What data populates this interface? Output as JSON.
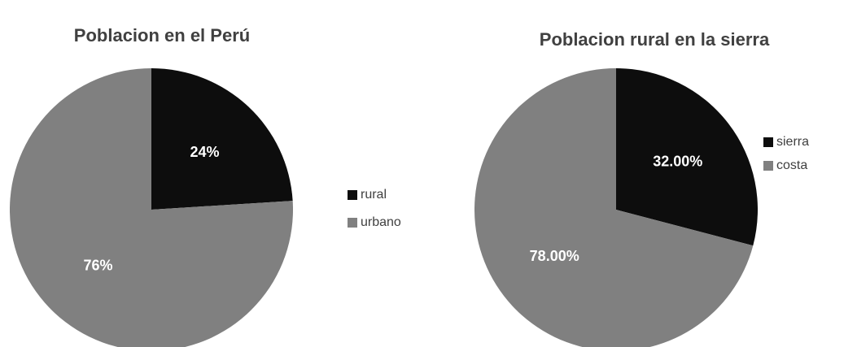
{
  "chart_data": [
    {
      "type": "pie",
      "title": "Poblacion en el Perú",
      "categories": [
        "rural",
        "urbano"
      ],
      "values": [
        24,
        76
      ],
      "value_labels": [
        "24%",
        "76%"
      ],
      "colors": [
        "#0d0d0d",
        "#808080"
      ],
      "legend": "right"
    },
    {
      "type": "pie",
      "title": "Poblacion rural en la sierra",
      "categories": [
        "sierra",
        "costa"
      ],
      "values": [
        32,
        78
      ],
      "value_labels": [
        "32.00%",
        "78.00%"
      ],
      "colors": [
        "#0d0d0d",
        "#808080"
      ],
      "legend": "right"
    }
  ]
}
